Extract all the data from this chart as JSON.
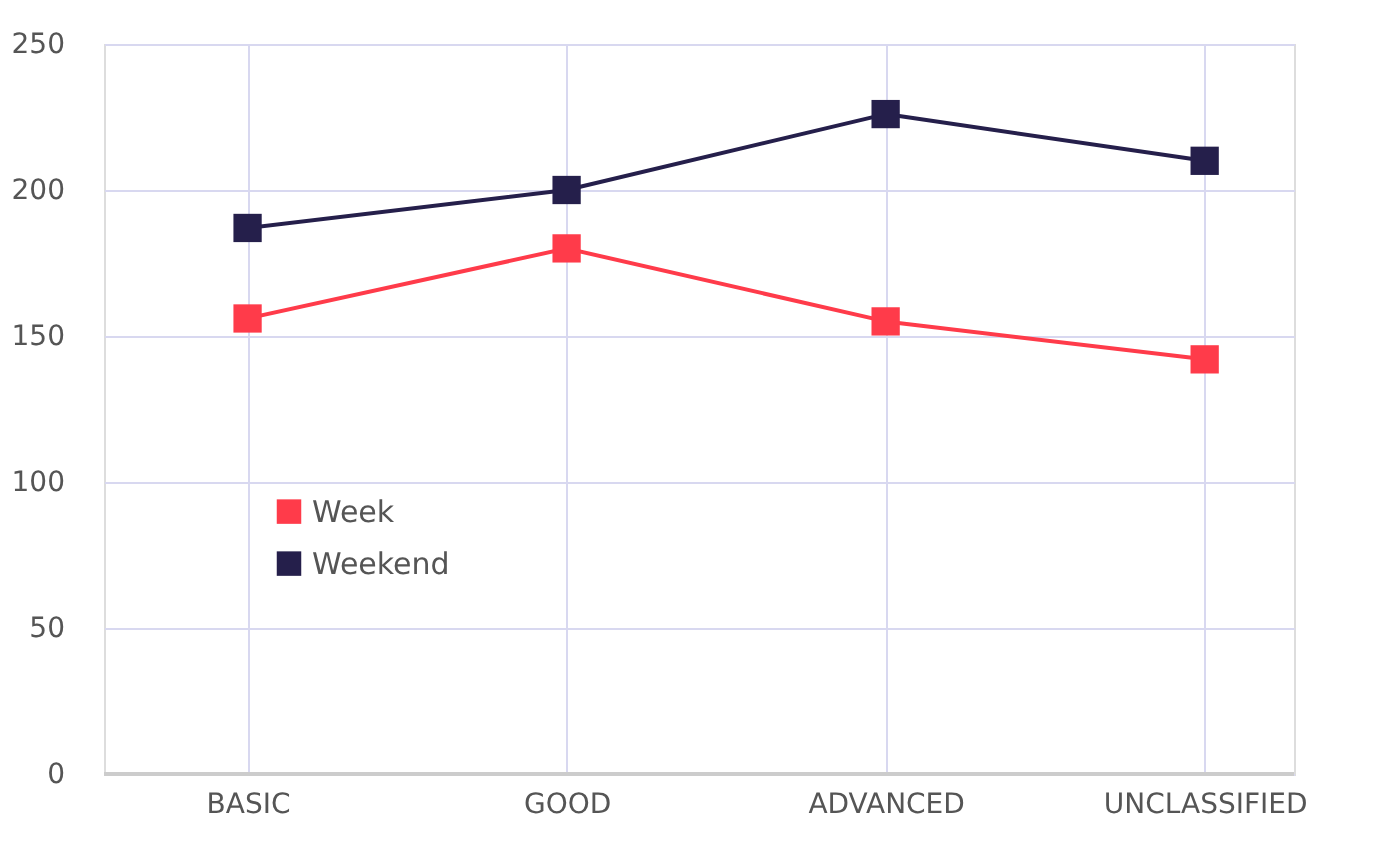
{
  "chart_data": {
    "type": "line",
    "categories": [
      "BASIC",
      "GOOD",
      "ADVANCED",
      "UNCLASSIFIED"
    ],
    "series": [
      {
        "name": "Week",
        "color": "#ff3b4a",
        "values": [
          156,
          180,
          155,
          142
        ]
      },
      {
        "name": "Weekend",
        "color": "#251f4b",
        "values": [
          187,
          200,
          226,
          210
        ]
      }
    ],
    "ylim": [
      0,
      250
    ],
    "yticks": [
      0,
      50,
      100,
      150,
      200,
      250
    ],
    "grid": true,
    "legend": "left",
    "marker": "square",
    "line_style": "solid"
  }
}
